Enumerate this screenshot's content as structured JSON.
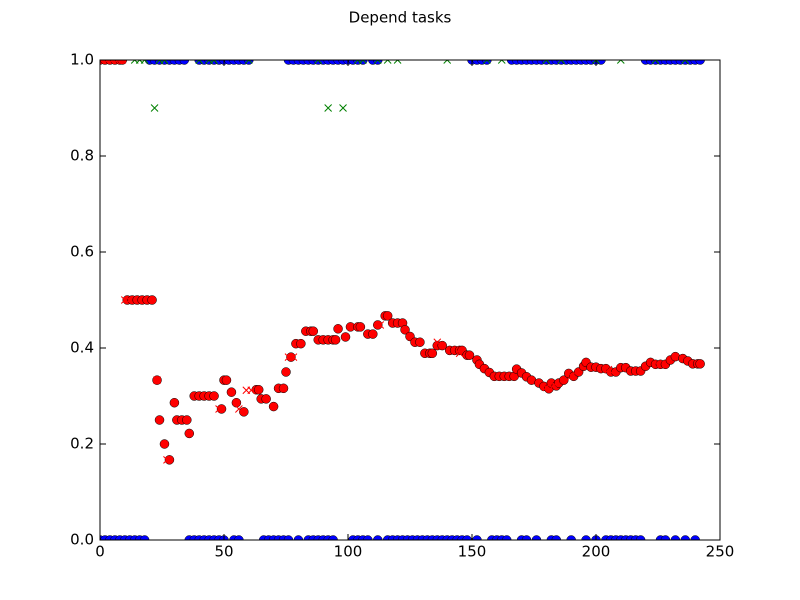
{
  "chart_data": {
    "type": "scatter",
    "title": "Depend tasks",
    "xlim": [
      0,
      250
    ],
    "ylim": [
      0,
      1
    ],
    "xticks": [
      0,
      50,
      100,
      150,
      200,
      250
    ],
    "yticks": [
      {
        "value": 0,
        "label": "0.0"
      },
      0.2,
      0.4,
      0.6,
      0.8,
      {
        "value": 1,
        "label": "1.0"
      }
    ],
    "series": [
      {
        "marker": "o",
        "color": "#0000ff",
        "x": [
          20,
          22,
          24,
          26,
          28,
          30,
          32,
          34,
          40,
          42,
          44,
          46,
          48,
          50,
          52,
          54,
          56,
          58,
          60,
          76,
          78,
          80,
          82,
          84,
          86,
          88,
          90,
          92,
          94,
          96,
          98,
          100,
          102,
          104,
          106,
          110,
          112,
          150,
          152,
          154,
          156,
          166,
          168,
          170,
          172,
          174,
          176,
          178,
          180,
          182,
          184,
          186,
          188,
          190,
          192,
          194,
          196,
          198,
          200,
          202,
          220,
          222,
          224,
          226,
          228,
          230,
          232,
          234,
          236,
          238,
          240,
          242
        ],
        "values": [
          1,
          1,
          1,
          1,
          1,
          1,
          1,
          1,
          1,
          1,
          1,
          1,
          1,
          1,
          1,
          1,
          1,
          1,
          1,
          1,
          1,
          1,
          1,
          1,
          1,
          1,
          1,
          1,
          1,
          1,
          1,
          1,
          1,
          1,
          1,
          1,
          1,
          1,
          1,
          1,
          1,
          1,
          1,
          1,
          1,
          1,
          1,
          1,
          1,
          1,
          1,
          1,
          1,
          1,
          1,
          1,
          1,
          1,
          1,
          1,
          1,
          1,
          1,
          1,
          1,
          1,
          1,
          1,
          1,
          1,
          1,
          1
        ]
      },
      {
        "marker": "o",
        "color": "#0000ff",
        "x": [
          0,
          2,
          4,
          6,
          8,
          10,
          12,
          14,
          16,
          18,
          36,
          38,
          40,
          42,
          44,
          46,
          48,
          50,
          54,
          56,
          66,
          68,
          70,
          72,
          74,
          76,
          80,
          84,
          86,
          88,
          90,
          92,
          94,
          102,
          104,
          106,
          108,
          112,
          116,
          118,
          120,
          122,
          124,
          126,
          128,
          130,
          132,
          134,
          136,
          138,
          140,
          142,
          144,
          146,
          148,
          152,
          158,
          160,
          162,
          164,
          170,
          172,
          176,
          182,
          184,
          190,
          196,
          200,
          204,
          206,
          208,
          210,
          212,
          214,
          216,
          218,
          226,
          228,
          232,
          236,
          240
        ],
        "values": [
          0,
          0,
          0,
          0,
          0,
          0,
          0,
          0,
          0,
          0,
          0,
          0,
          0,
          0,
          0,
          0,
          0,
          0,
          0,
          0,
          0,
          0,
          0,
          0,
          0,
          0,
          0,
          0,
          0,
          0,
          0,
          0,
          0,
          0,
          0,
          0,
          0,
          0,
          0,
          0,
          0,
          0,
          0,
          0,
          0,
          0,
          0,
          0,
          0,
          0,
          0,
          0,
          0,
          0,
          0,
          0,
          0,
          0,
          0,
          0,
          0,
          0,
          0,
          0,
          0,
          0,
          0,
          0,
          0,
          0,
          0,
          0,
          0,
          0,
          0,
          0,
          0,
          0,
          0,
          0,
          0
        ]
      },
      {
        "marker": "x",
        "color": "#008000",
        "x": [
          0,
          2,
          4,
          6,
          8,
          14,
          16,
          18,
          22,
          24,
          26,
          40,
          44,
          46,
          60,
          88,
          92,
          98,
          104,
          106,
          112,
          116,
          120,
          140,
          156,
          162,
          180,
          186,
          200,
          210,
          224,
          236
        ],
        "values": [
          1,
          1,
          1,
          1,
          1,
          1,
          1,
          1,
          0.9,
          1,
          1,
          1,
          1,
          1,
          1,
          1,
          0.9,
          0.9,
          1,
          1,
          1,
          1,
          1,
          1,
          1,
          1,
          1,
          1,
          1,
          1,
          1,
          1
        ]
      },
      {
        "marker": "o",
        "color": "#ff0000",
        "x": [
          0,
          2,
          4,
          6,
          8,
          9,
          11,
          13,
          15,
          17,
          19,
          21,
          23,
          24,
          26,
          28,
          30,
          31,
          33,
          35,
          36,
          38,
          40,
          42,
          44,
          46,
          49,
          50,
          51,
          53,
          55,
          58,
          63,
          64,
          65,
          67,
          70,
          72,
          74,
          75,
          77,
          79,
          81,
          83,
          85,
          86,
          88,
          90,
          92,
          94,
          95,
          96,
          99,
          101,
          104,
          105,
          108,
          110,
          112,
          115,
          116,
          118,
          120,
          122,
          123,
          125,
          127,
          129,
          131,
          133,
          134,
          136,
          138,
          141,
          143,
          145,
          146,
          148,
          149,
          152,
          153,
          155,
          157,
          159,
          161,
          163,
          165,
          167,
          168,
          170,
          172,
          174,
          177,
          179,
          181,
          182,
          184,
          185,
          187,
          189,
          191,
          193,
          195,
          196,
          198,
          200,
          202,
          204,
          206,
          208,
          210,
          212,
          214,
          216,
          218,
          220,
          222,
          224,
          226,
          228,
          230,
          232,
          235,
          237,
          239,
          241,
          242
        ],
        "values": [
          1,
          1,
          1,
          1,
          1,
          1,
          0.5,
          0.5,
          0.5,
          0.5,
          0.5,
          0.5,
          0.333,
          0.25,
          0.2,
          0.167,
          0.286,
          0.25,
          0.25,
          0.25,
          0.222,
          0.3,
          0.3,
          0.3,
          0.3,
          0.3,
          0.273,
          0.333,
          0.333,
          0.308,
          0.286,
          0.267,
          0.313,
          0.313,
          0.294,
          0.294,
          0.278,
          0.316,
          0.316,
          0.35,
          0.381,
          0.409,
          0.409,
          0.435,
          0.435,
          0.435,
          0.417,
          0.417,
          0.417,
          0.417,
          0.417,
          0.44,
          0.423,
          0.444,
          0.444,
          0.444,
          0.429,
          0.429,
          0.448,
          0.467,
          0.467,
          0.452,
          0.452,
          0.452,
          0.438,
          0.424,
          0.412,
          0.412,
          0.389,
          0.389,
          0.389,
          0.405,
          0.405,
          0.395,
          0.395,
          0.395,
          0.395,
          0.385,
          0.385,
          0.375,
          0.366,
          0.357,
          0.349,
          0.341,
          0.341,
          0.341,
          0.341,
          0.341,
          0.356,
          0.348,
          0.34,
          0.333,
          0.327,
          0.32,
          0.315,
          0.327,
          0.321,
          0.327,
          0.333,
          0.347,
          0.341,
          0.35,
          0.362,
          0.37,
          0.36,
          0.36,
          0.357,
          0.357,
          0.35,
          0.35,
          0.359,
          0.359,
          0.352,
          0.352,
          0.352,
          0.362,
          0.37,
          0.366,
          0.366,
          0.366,
          0.375,
          0.382,
          0.378,
          0.373,
          0.367,
          0.367,
          0.367
        ]
      },
      {
        "marker": "x",
        "color": "#ff0000",
        "x": [
          0,
          3,
          5,
          7,
          9,
          10,
          12,
          23,
          27,
          48,
          56,
          59,
          61,
          76,
          78,
          113,
          136,
          145,
          180,
          183,
          190,
          205,
          225
        ],
        "values": [
          1,
          1,
          1,
          1,
          1,
          0.5,
          0.5,
          0.333,
          0.167,
          0.273,
          0.273,
          0.312,
          0.312,
          0.381,
          0.381,
          0.448,
          0.412,
          0.389,
          0.318,
          0.323,
          0.341,
          0.355,
          0.365
        ]
      }
    ]
  }
}
